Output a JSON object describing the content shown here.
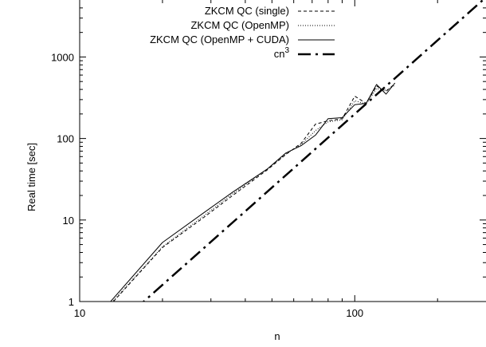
{
  "chart_data": {
    "type": "line",
    "xlabel": "n",
    "ylabel": "Real time [sec]",
    "xscale": "log",
    "yscale": "log",
    "xlim": [
      10,
      300
    ],
    "ylim": [
      1,
      5000
    ],
    "xticks": [
      10,
      100
    ],
    "xtick_labels": [
      "10",
      "100"
    ],
    "yticks": [
      1,
      10,
      100,
      1000
    ],
    "ytick_labels": [
      "1",
      "10",
      "100",
      "1000"
    ],
    "legend_position": "top-right",
    "grid": false,
    "series": [
      {
        "name": "ZKCM QC (single)",
        "style": "dashed-thin",
        "color": "#000000",
        "x": [
          10,
          20,
          28,
          36,
          48,
          56,
          64,
          72,
          80,
          90,
          100,
          110,
          120,
          130,
          140
        ],
        "y": [
          0.35,
          4.6,
          10.5,
          20,
          41,
          63,
          88,
          150,
          165,
          175,
          330,
          270,
          440,
          380,
          470
        ]
      },
      {
        "name": "ZKCM QC (OpenMP)",
        "style": "dotted",
        "color": "#000000",
        "x": [
          10,
          20,
          28,
          36,
          48,
          56,
          64,
          72,
          80,
          90,
          100,
          110,
          120,
          130,
          140
        ],
        "y": [
          0.36,
          4.7,
          11,
          21,
          42,
          64,
          85,
          125,
          160,
          170,
          290,
          265,
          410,
          390,
          450
        ]
      },
      {
        "name": "ZKCM QC (OpenMP + CUDA)",
        "style": "solid-thin",
        "color": "#000000",
        "x": [
          10,
          20,
          28,
          36,
          48,
          56,
          64,
          72,
          80,
          90,
          100,
          110,
          120,
          130,
          140
        ],
        "y": [
          0.37,
          5.3,
          12,
          22,
          42,
          66,
          82,
          110,
          175,
          180,
          260,
          270,
          460,
          350,
          480
        ]
      },
      {
        "name": "cn",
        "name_sup": "3",
        "style": "dash-dot-thick",
        "color": "#000000",
        "x": [
          10,
          300
        ],
        "y": [
          0.2,
          5400
        ]
      }
    ]
  }
}
